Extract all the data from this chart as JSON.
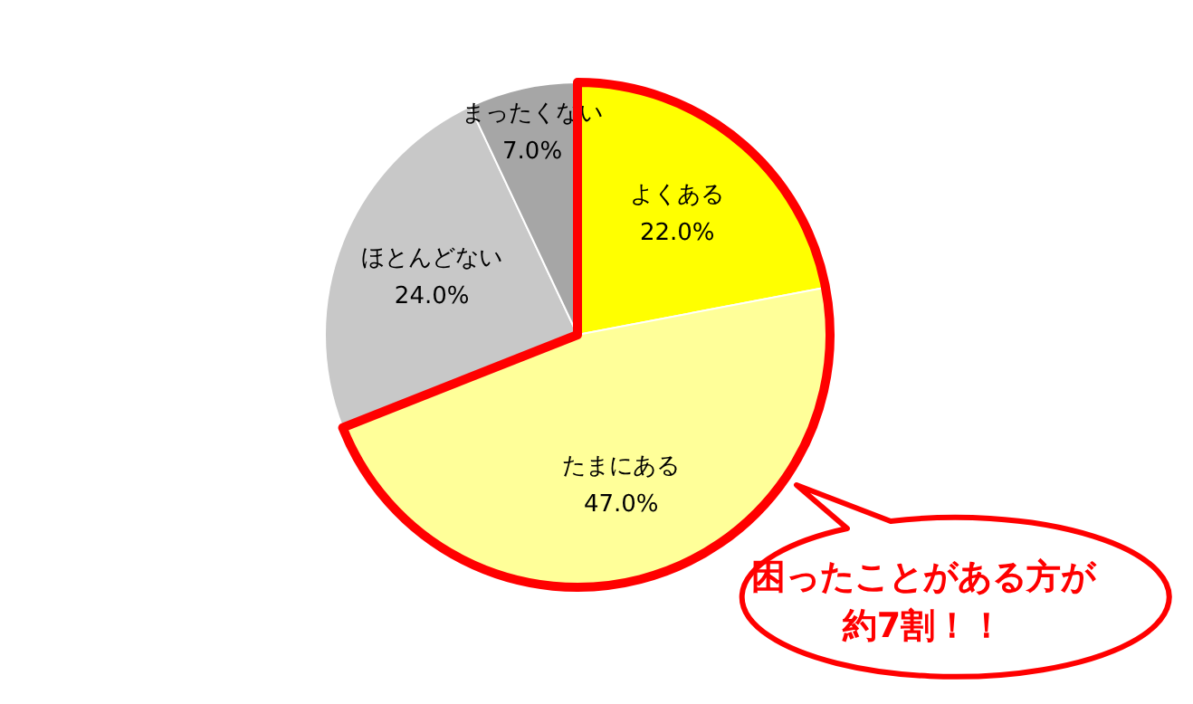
{
  "chart_data": {
    "type": "pie",
    "categories": [
      "よくある",
      "たまにある",
      "ほとんどない",
      "まったくない"
    ],
    "values": [
      22.0,
      47.0,
      24.0,
      7.0
    ],
    "value_labels": [
      "22.0%",
      "47.0%",
      "24.0%",
      "7.0%"
    ],
    "colors": [
      "#ffff00",
      "#ffff99",
      "#c8c8c8",
      "#a6a6a6"
    ],
    "legend": false,
    "annotations": [
      "困ったことがある方が約7割！！"
    ]
  }
}
